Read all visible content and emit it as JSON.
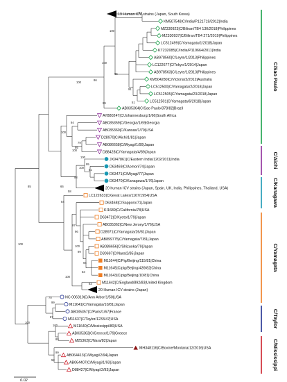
{
  "figure": {
    "scale_bar_label": "0.02",
    "clades": [
      {
        "key": "saopaulo",
        "label": "C/Sao Paulo",
        "color": "#1aa14a"
      },
      {
        "key": "aichi",
        "label": "C/Aichi",
        "color": "#8e2c9a"
      },
      {
        "key": "kanagawa",
        "label": "C/Kanagawa",
        "color": "#1a98b3"
      },
      {
        "key": "yamagata",
        "label": "C/Yamagata",
        "color": "#ef7d22"
      },
      {
        "key": "taylor",
        "label": "C/Taylor",
        "color": "#1f2f8f"
      },
      {
        "key": "mississippi",
        "label": "C/Mississippi",
        "color": "#cc1f2a"
      }
    ],
    "tips": [
      {
        "label": "19 Human ICV strains (Japan, South Korea)",
        "marker": "collapsed"
      },
      {
        "label": "KM507548|C/India/P121719/2012|India",
        "marker": "diamond-open-green"
      },
      {
        "label": "MZ330923|C/Biliran/TB4 130/2018|Philippines",
        "marker": "diamond-open-green"
      },
      {
        "label": "MZ330937|C/Biliran/TB4 271/2019|Philippines",
        "marker": "diamond-open-green"
      },
      {
        "label": "LC512499|C/Yamagata/1/2018|Japan",
        "marker": "diamond-open-green"
      },
      {
        "label": "KT232085|C/India/P119664/2011|India",
        "marker": "diamond-open-green"
      },
      {
        "label": "AB978560|C/Leyte/1/2013|Philippines",
        "marker": "diamond-open-green"
      },
      {
        "label": "LC122677|C/Tokyo/1/2014|Japan",
        "marker": "diamond-open-green"
      },
      {
        "label": "AB978563|C/Leyte/1/2013|Philippines",
        "marker": "diamond-open-green"
      },
      {
        "label": "KM504280|C/Victoria/2/2012|Australia",
        "marker": "diamond-open-green"
      },
      {
        "label": "LC512500|C/Yamagata/2/2018|Japan",
        "marker": "diamond-open-green"
      },
      {
        "label": "LC512505|C/Yamagata/23/2018|Japan",
        "marker": "diamond-open-green"
      },
      {
        "label": "LC512501|C/Yamagata/6/2018|Japan",
        "marker": "diamond-open-green"
      },
      {
        "label": "AB035364|C/Sao Paulo/378/82|Brazil",
        "marker": "diamond-open-green"
      },
      {
        "label": "AY880247|C/Johannesburg/1/66|South Africa",
        "marker": "tri-down-purple"
      },
      {
        "label": "AB035359|C/Georgia/1/69|Georgia",
        "marker": "tri-down-purple"
      },
      {
        "label": "AB035360|C/Kansas/1/79|USA",
        "marker": "tri-down-purple"
      },
      {
        "label": "D28970|C/Aichi/1/81|Japan",
        "marker": "tri-down-purple"
      },
      {
        "label": "AB086658|C/Miyagi/1/90|Japan",
        "marker": "tri-down-purple"
      },
      {
        "label": "D88428|C/Yamagata/4/89|Japan",
        "marker": "tri-down-purple"
      },
      {
        "label": "JX947861|C/Eastern India/1202/2011|India",
        "marker": "circle-teal"
      },
      {
        "label": "D63469|C/Aomori/74|Japan",
        "marker": "circle-teal"
      },
      {
        "label": "D63471|C/Miyagi/77|Japan",
        "marker": "circle-teal"
      },
      {
        "label": "D63470|C/Kanagawa/1/76|Japan",
        "marker": "circle-teal"
      },
      {
        "label": "20 human ICV strains (Japan, Spain, UK, India, Philippines, Thailand, USA)",
        "marker": "collapsed"
      },
      {
        "label": "LC122633|C/Great Lakes/1167/1954|USA",
        "marker": "square-orange"
      },
      {
        "label": "D63468|C/Sapporo/71|Japan",
        "marker": "square-orange"
      },
      {
        "label": "KI1689|C/California/78|USA",
        "marker": "square-orange"
      },
      {
        "label": "D63472|C/Kyoto/1/79|Japan",
        "marker": "square-orange"
      },
      {
        "label": "AB035362|C/New Jersey/1/76|USA",
        "marker": "square-orange"
      },
      {
        "label": "D28971|C/Yamagata/26/81|Japan",
        "marker": "square-orange"
      },
      {
        "label": "AB899775|C/Yamagata/7/81|Japan",
        "marker": "square-orange"
      },
      {
        "label": "AB086656|C/Shizuoka/79|Japan",
        "marker": "square-orange"
      },
      {
        "label": "D30697|C/Nara/2/85|Japan",
        "marker": "square-orange"
      },
      {
        "label": "M11644|C/Pig/Beijing/115/81|China",
        "marker": "square-orange-filled"
      },
      {
        "label": "M11645|C/pig/Beijing/439/82|China",
        "marker": "square-orange-filled"
      },
      {
        "label": "M11643|C/pig/Beijing/10/81|China",
        "marker": "square-orange-filled"
      },
      {
        "label": "M11642|C/England/892/83|United Kingdom",
        "marker": "square-orange"
      },
      {
        "label": "20 Human ICV strains (Japan)",
        "marker": "collapsed"
      },
      {
        "label": "NC 006310|C/Ann Arbor/1/50|USA",
        "marker": "circle-navy"
      },
      {
        "label": "M11641|C/Yamagata/10/81|Japan",
        "marker": "circle-navy"
      },
      {
        "label": "AB035357|C/Paris/1/67|France",
        "marker": "circle-navy"
      },
      {
        "label": "M11637|C/Taylor/1233/47|USA",
        "marker": "circle-navy"
      },
      {
        "label": "M11640|C/Mississippi/80|USA",
        "marker": "tri-up-red"
      },
      {
        "label": "AB035363|C/Greece/1/79|Greece",
        "marker": "tri-up-red"
      },
      {
        "label": "M25362|C/Nara/82|Japan",
        "marker": "tri-up-red"
      },
      {
        "label": "MH348116|C/Bovine/Montana/12/2016|USA",
        "marker": "tri-up-darkred"
      },
      {
        "label": "AB064413|C/Miyagi/2/94|Japan",
        "marker": "tri-up-red"
      },
      {
        "label": "AB064407|C/Miyagi/1/93|Japan",
        "marker": "tri-up-red"
      },
      {
        "label": "D88427|C/Miyagi/2/93|Japan",
        "marker": "tri-up-red"
      }
    ],
    "bootstrap_values": [
      "97",
      "100",
      "100",
      "96",
      "86",
      "91",
      "51",
      "99",
      "100",
      "94",
      "100",
      "79",
      "95",
      "100",
      "100",
      "95",
      "51",
      "100",
      "98",
      "66",
      "58",
      "85",
      "100",
      "84",
      "97",
      "96",
      "100",
      "99",
      "94",
      "53",
      "83",
      "100",
      "70",
      "99",
      "87",
      "100",
      "100",
      "80",
      "99",
      "58"
    ]
  }
}
